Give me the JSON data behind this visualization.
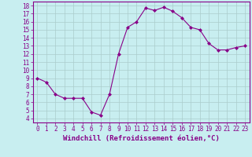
{
  "x": [
    0,
    1,
    2,
    3,
    4,
    5,
    6,
    7,
    8,
    9,
    10,
    11,
    12,
    13,
    14,
    15,
    16,
    17,
    18,
    19,
    20,
    21,
    22,
    23
  ],
  "y": [
    9.0,
    8.5,
    7.0,
    6.5,
    6.5,
    6.5,
    4.8,
    4.4,
    7.0,
    12.0,
    15.3,
    16.0,
    17.7,
    17.4,
    17.8,
    17.3,
    16.5,
    15.3,
    15.0,
    13.3,
    12.5,
    12.5,
    12.8,
    13.0
  ],
  "xlim": [
    -0.5,
    23.5
  ],
  "ylim": [
    3.5,
    18.5
  ],
  "xticks": [
    0,
    1,
    2,
    3,
    4,
    5,
    6,
    7,
    8,
    9,
    10,
    11,
    12,
    13,
    14,
    15,
    16,
    17,
    18,
    19,
    20,
    21,
    22,
    23
  ],
  "yticks": [
    4,
    5,
    6,
    7,
    8,
    9,
    10,
    11,
    12,
    13,
    14,
    15,
    16,
    17,
    18
  ],
  "xlabel": "Windchill (Refroidissement éolien,°C)",
  "line_color": "#880088",
  "marker": "D",
  "marker_size": 2,
  "bg_color": "#c8eef0",
  "grid_color": "#aacccc",
  "tick_fontsize": 5.5,
  "xlabel_fontsize": 6.5
}
